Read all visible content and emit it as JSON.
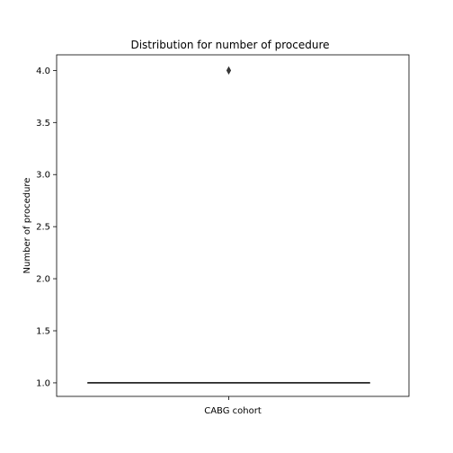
{
  "chart_data": {
    "type": "box",
    "title": "Distribution for number of procedure",
    "xlabel": "CABG cohort",
    "ylabel": "Number of procedure",
    "categories": [
      ""
    ],
    "yticks": [
      1.0,
      1.5,
      2.0,
      2.5,
      3.0,
      3.5,
      4.0
    ],
    "ytick_labels": [
      "1.0",
      "1.5",
      "2.0",
      "2.5",
      "3.0",
      "3.5",
      "4.0"
    ],
    "ylim": [
      0.87,
      4.15
    ],
    "grid": false,
    "box": {
      "q1": 1.0,
      "median": 1.0,
      "q3": 1.0,
      "whisker_low": 1.0,
      "whisker_high": 1.0,
      "outliers": [
        4.0
      ]
    },
    "colors": {
      "box_line": "#000000",
      "outlier_fill": "#3a3a3a"
    }
  }
}
